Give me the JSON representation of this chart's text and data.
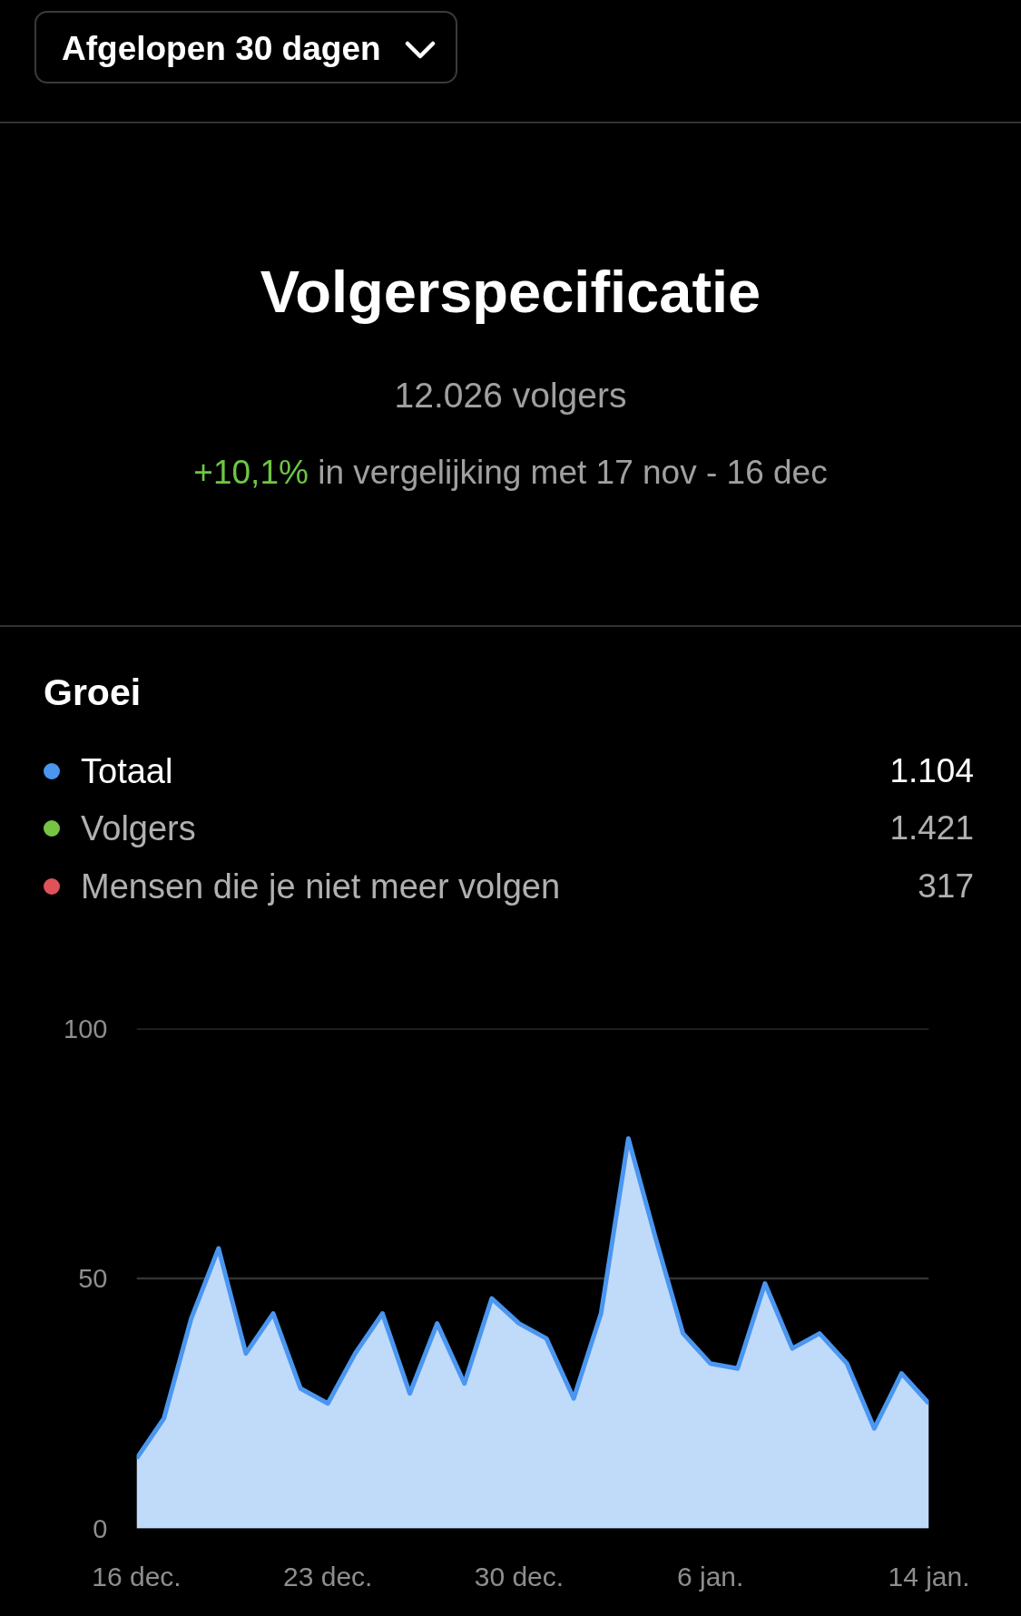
{
  "chart_data": {
    "type": "area",
    "title": "Volgerspecificatie",
    "subtitle": "12.026 volgers",
    "annotations": [
      "Afgelopen 30 dagen",
      "+10,1%",
      "in vergelijking met 17 nov - 16 dec",
      "Groei",
      "1.104",
      "1.421",
      "317"
    ],
    "categories": [
      "16 dec.",
      null,
      null,
      null,
      null,
      null,
      null,
      "23 dec.",
      null,
      null,
      null,
      null,
      null,
      null,
      "30 dec.",
      null,
      null,
      null,
      null,
      null,
      null,
      "6 jan.",
      null,
      null,
      null,
      null,
      null,
      null,
      null,
      "14 jan."
    ],
    "series": [
      {
        "name": "Totaal",
        "color": "#4a96f0",
        "values": [
          14,
          22,
          42,
          56,
          35,
          43,
          28,
          25,
          35,
          43,
          27,
          41,
          29,
          46,
          41,
          38,
          26,
          43,
          78,
          58,
          39,
          33,
          32,
          49,
          36,
          39,
          33,
          20,
          31,
          25
        ]
      },
      {
        "name": "Volgers",
        "color": "#76c442",
        "values": [
          null,
          null,
          null,
          null,
          null,
          null,
          null,
          null,
          null,
          null,
          null,
          null,
          null,
          null,
          null,
          null,
          null,
          null,
          null,
          null,
          null,
          null,
          null,
          null,
          null,
          null,
          null,
          null,
          null,
          null
        ]
      },
      {
        "name": "Mensen die je niet meer volgen",
        "color": "#e0525a",
        "values": [
          null,
          null,
          null,
          null,
          null,
          null,
          null,
          null,
          null,
          null,
          null,
          null,
          null,
          null,
          null,
          null,
          null,
          null,
          null,
          null,
          null,
          null,
          null,
          null,
          null,
          null,
          null,
          null,
          null,
          null
        ]
      }
    ],
    "ylim": [
      0,
      100
    ],
    "yticks": [
      0,
      50,
      100
    ],
    "grid": "y",
    "legend": "top"
  }
}
